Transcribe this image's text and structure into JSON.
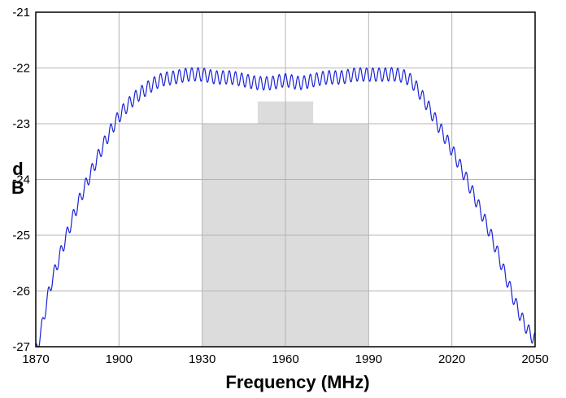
{
  "chart_data": {
    "type": "line",
    "title": "",
    "xlabel": "Frequency (MHz)",
    "ylabel_top": "d",
    "ylabel_bottom": "B",
    "xlim": [
      1870,
      2050
    ],
    "ylim": [
      -27,
      -21
    ],
    "x_ticks": [
      1870,
      1900,
      1930,
      1960,
      1990,
      2020,
      2050
    ],
    "y_ticks": [
      -21,
      -22,
      -23,
      -24,
      -25,
      -26,
      -27
    ],
    "grid": true,
    "legend": "none",
    "colors": {
      "line": "#1a22d6",
      "mask": "#dcdcdc",
      "grid": "#b4b4b4",
      "frame": "#000000"
    },
    "mask_regions": [
      {
        "x": [
          1930,
          1990
        ],
        "y_top": -23.0
      },
      {
        "x": [
          1950,
          1970
        ],
        "y_top": -22.6
      }
    ],
    "series": [
      {
        "x": [
          1870,
          1875,
          1880,
          1885,
          1890,
          1895,
          1900,
          1905,
          1910,
          1915,
          1920,
          1925,
          1930,
          1935,
          1940,
          1945,
          1950,
          1955,
          1960,
          1965,
          1970,
          1975,
          1980,
          1985,
          1990,
          1995,
          2000,
          2005,
          2010,
          2015,
          2020,
          2025,
          2030,
          2035,
          2040,
          2045,
          2050
        ],
        "y": [
          -26.95,
          -25.85,
          -25.05,
          -24.35,
          -23.75,
          -23.2,
          -22.75,
          -22.45,
          -22.25,
          -22.1,
          -22.05,
          -22.0,
          -22.0,
          -22.05,
          -22.05,
          -22.1,
          -22.15,
          -22.15,
          -22.1,
          -22.15,
          -22.1,
          -22.05,
          -22.05,
          -22.0,
          -22.0,
          -22.0,
          -22.0,
          -22.1,
          -22.45,
          -22.9,
          -23.35,
          -23.85,
          -24.4,
          -25.0,
          -25.7,
          -26.35,
          -26.75
        ]
      }
    ]
  }
}
